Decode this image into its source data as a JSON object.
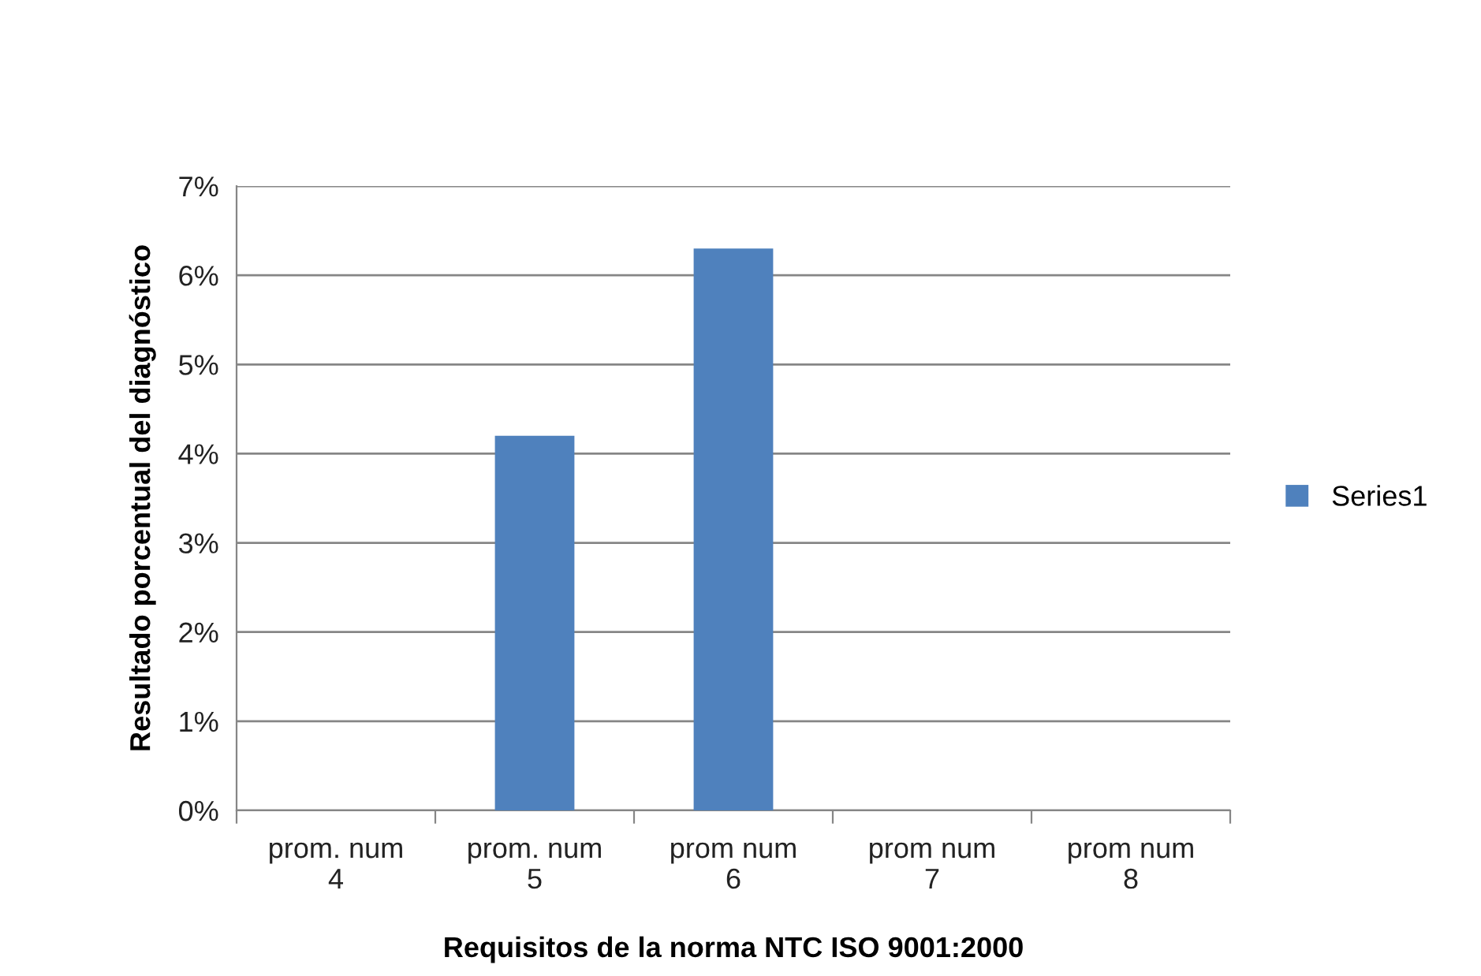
{
  "chart_data": {
    "type": "bar",
    "xlabel": "Requisitos de la norma NTC ISO 9001:2000",
    "ylabel": "Resultado porcentual del diagnóstico",
    "categories": [
      "prom. num\n4",
      "prom. num\n5",
      "prom num\n6",
      "prom num\n7",
      "prom num\n8"
    ],
    "series": [
      {
        "name": "Series1",
        "color": "#4f81bd",
        "values": [
          0,
          4.2,
          6.3,
          0,
          0
        ]
      }
    ],
    "ylim": [
      0,
      7
    ],
    "yticks": [
      {
        "value": 0,
        "label": "0%"
      },
      {
        "value": 1,
        "label": "1%"
      },
      {
        "value": 2,
        "label": "2%"
      },
      {
        "value": 3,
        "label": "3%"
      },
      {
        "value": 4,
        "label": "4%"
      },
      {
        "value": 5,
        "label": "5%"
      },
      {
        "value": 6,
        "label": "6%"
      },
      {
        "value": 7,
        "label": "7%"
      }
    ],
    "grid": "y",
    "legend": "right"
  }
}
